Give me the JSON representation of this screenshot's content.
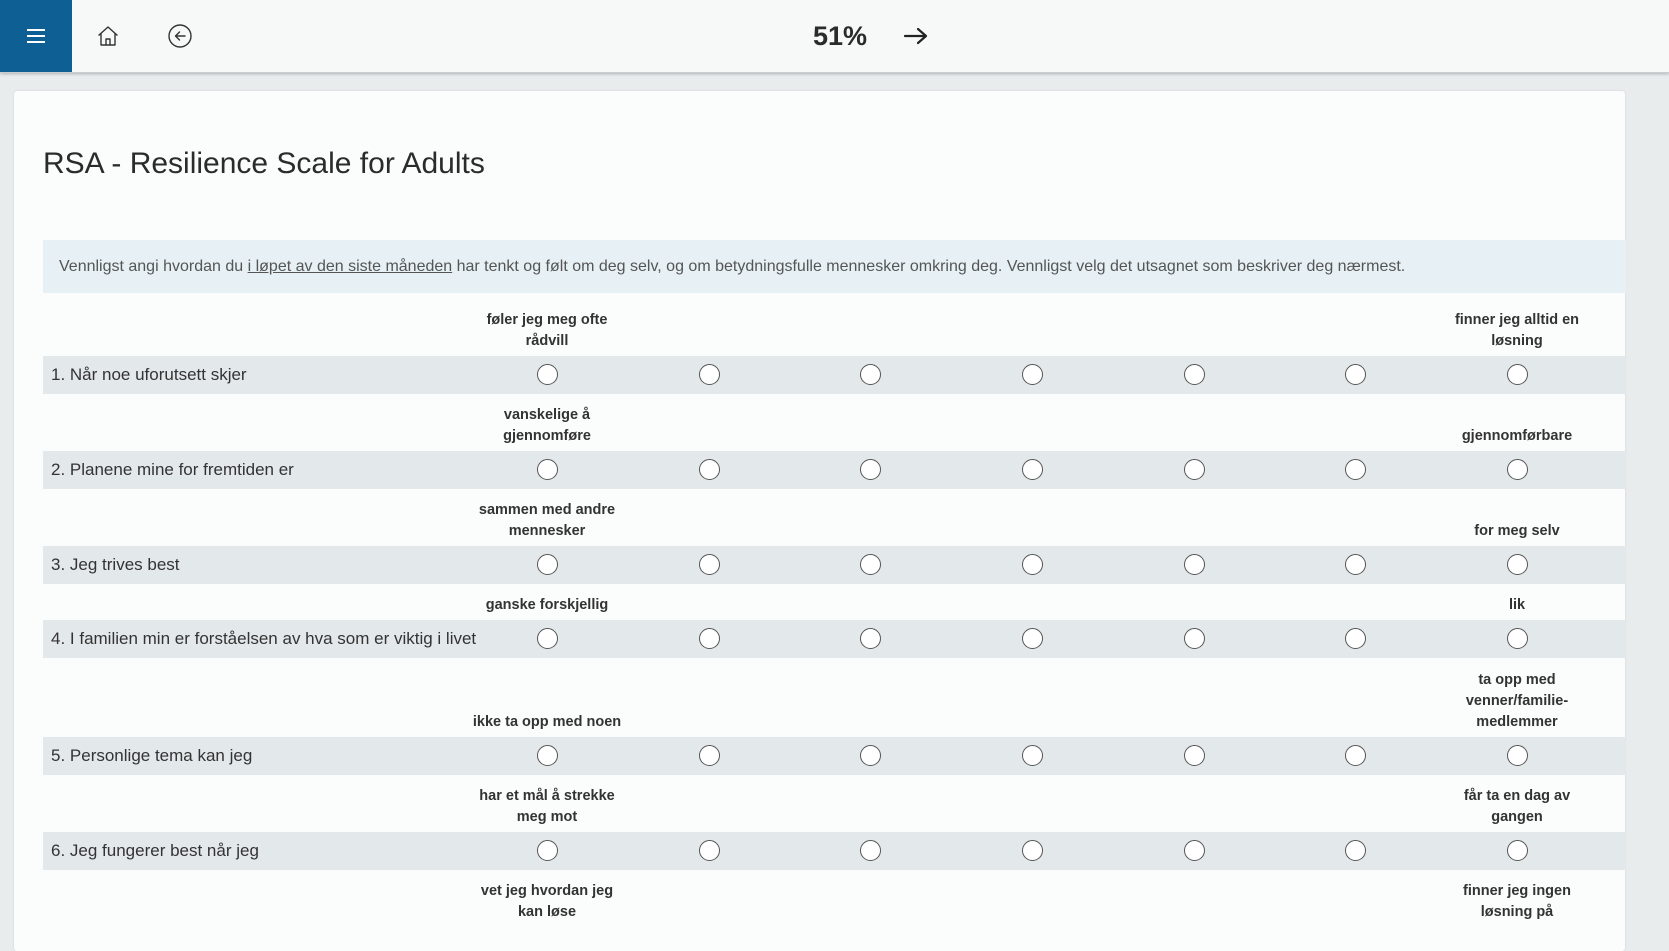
{
  "topbar": {
    "progress": "51%",
    "menu_icon": "hamburger-menu-icon",
    "home_icon": "home-icon",
    "back_icon": "circle-arrow-left-icon",
    "next_icon": "arrow-right-icon",
    "accent": "#0d5f94"
  },
  "page": {
    "title": "RSA - Resilience Scale for Adults",
    "instruction_pre": "Vennligst angi hvordan du ",
    "instruction_underlined": "i løpet av den siste måneden",
    "instruction_post": " har tenkt og følt om deg selv, og om betydningsfulle mennesker omkring deg. Vennligst velg det utsagnet som beskriver deg nærmest."
  },
  "scale_points": 7,
  "questions": [
    {
      "label": "1. Når noe uforutsett skjer",
      "left_anchor": "føler jeg meg ofte rådvill",
      "right_anchor": "finner jeg alltid en løsning"
    },
    {
      "label": "2. Planene mine for fremtiden er",
      "left_anchor": "vanskelige å gjennomføre",
      "right_anchor": "gjennomførbare"
    },
    {
      "label": "3. Jeg trives best",
      "left_anchor": "sammen med andre mennesker",
      "right_anchor": "for meg selv"
    },
    {
      "label": "4. I familien min er forståelsen av hva som er viktig i livet",
      "left_anchor": "ganske forskjellig",
      "right_anchor": "lik"
    },
    {
      "label": "5. Personlige tema kan jeg",
      "left_anchor": "ikke ta opp med noen",
      "right_anchor": "ta opp med venner/familie-medlemmer"
    },
    {
      "label": "6. Jeg fungerer best når jeg",
      "left_anchor": "har et mål å strekke meg mot",
      "right_anchor": "får ta en dag av gangen"
    },
    {
      "label": "",
      "left_anchor": "vet jeg hvordan jeg kan løse",
      "right_anchor": "finner jeg ingen løsning på"
    }
  ]
}
